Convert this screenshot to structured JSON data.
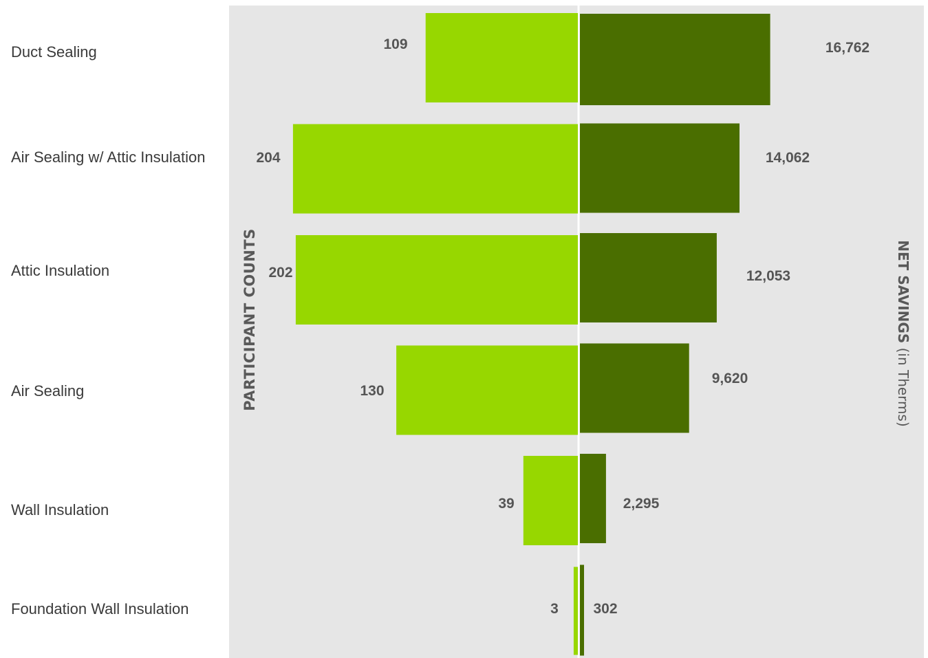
{
  "chart_data": {
    "type": "bar",
    "orientation": "horizontal-butterfly",
    "categories": [
      "Duct Sealing",
      "Air Sealing w/ Attic Insulation",
      "Attic Insulation",
      "Air Sealing",
      "Wall Insulation",
      "Foundation Wall Insulation"
    ],
    "series": [
      {
        "name": "PARTICIPANT COUNTS",
        "values": [
          109,
          204,
          202,
          130,
          39,
          3
        ],
        "labels": [
          "109",
          "204",
          "202",
          "130",
          "39",
          "3"
        ],
        "color": "#97d700",
        "side": "left"
      },
      {
        "name": "NET SAVINGS (in Therms)",
        "values": [
          16762,
          14062,
          12053,
          9620,
          2295,
          302
        ],
        "labels": [
          "16,762",
          "14,062",
          "12,053",
          "9,620",
          "2,295",
          "302"
        ],
        "color": "#4a6e00",
        "side": "right"
      }
    ],
    "axis_titles": {
      "left": "PARTICIPANT COUNTS",
      "right_bold": "NET SAVINGS",
      "right_normal": " (in Therms)"
    },
    "background_color": "#e6e6e6",
    "grid": false,
    "legend": "none"
  }
}
